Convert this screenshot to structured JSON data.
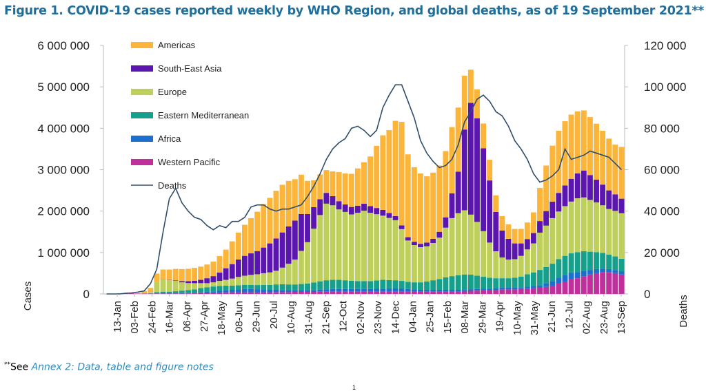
{
  "figure": {
    "title": "Figure 1. COVID-19 cases reported weekly by WHO Region, and global deaths, as of 19 September 2021**",
    "note_marker": "**",
    "note_prefix": "See ",
    "note_link": "Annex 2: Data, table and figure notes",
    "page_number": "1"
  },
  "chart_data": {
    "type": "bar",
    "stacked": true,
    "xlabels": [
      "13-Jan",
      "03-Feb",
      "24-Feb",
      "16-Mar",
      "06-Apr",
      "27-Apr",
      "18-May",
      "08-Jun",
      "29-Jun",
      "20-Jul",
      "10-Aug",
      "31-Aug",
      "21-Sep",
      "12-Oct",
      "02-Nov",
      "23-Nov",
      "14-Dec",
      "04-Jan",
      "25-Jan",
      "15-Feb",
      "08-Mar",
      "29-Mar",
      "19-Apr",
      "10-May",
      "31-May",
      "21-Jun",
      "12-Jul",
      "02-Aug",
      "23-Aug",
      "13-Sep"
    ],
    "ylabel": "Cases",
    "y2label": "Deaths",
    "ylim": [
      0,
      6000000
    ],
    "y2lim": [
      0,
      120000
    ],
    "yticks": [
      "0",
      "1 000 000",
      "2 000 000",
      "3 000 000",
      "4 000 000",
      "5 000 000",
      "6 000 000"
    ],
    "y2ticks": [
      "0",
      "20 000",
      "40 000",
      "60 000",
      "80 000",
      "100 000",
      "120 000"
    ],
    "legend_position": "top-left",
    "series": [
      {
        "name": "Western Pacific",
        "color": "#c0309a",
        "values": [
          0,
          5000,
          10000,
          15000,
          15000,
          10000,
          10000,
          10000,
          10000,
          10000,
          10000,
          10000,
          10000,
          12000,
          15000,
          20000,
          25000,
          30000,
          35000,
          40000,
          40000,
          40000,
          40000,
          40000,
          40000,
          40000,
          40000,
          45000,
          45000,
          45000,
          50000,
          50000,
          50000,
          50000,
          55000,
          55000,
          60000,
          60000,
          60000,
          60000,
          60000,
          60000,
          60000,
          60000,
          60000,
          60000,
          60000,
          60000,
          60000,
          60000,
          60000,
          60000,
          60000,
          60000,
          60000,
          60000,
          60000,
          70000,
          75000,
          80000,
          85000,
          90000,
          100000,
          110000,
          110000,
          110000,
          120000,
          130000,
          140000,
          150000,
          170000,
          200000,
          250000,
          300000,
          350000,
          380000,
          430000,
          470000,
          500000,
          520000,
          520000,
          500000,
          470000
        ]
      },
      {
        "name": "Africa",
        "color": "#1d6fcf",
        "values": [
          0,
          0,
          0,
          0,
          0,
          0,
          0,
          0,
          3000,
          5000,
          5000,
          5000,
          10000,
          10000,
          15000,
          20000,
          25000,
          30000,
          40000,
          50000,
          60000,
          70000,
          80000,
          80000,
          75000,
          70000,
          60000,
          55000,
          50000,
          45000,
          40000,
          40000,
          40000,
          45000,
          50000,
          55000,
          60000,
          60000,
          60000,
          60000,
          60000,
          60000,
          60000,
          65000,
          70000,
          75000,
          80000,
          75000,
          60000,
          50000,
          40000,
          40000,
          40000,
          40000,
          40000,
          40000,
          40000,
          40000,
          40000,
          40000,
          40000,
          40000,
          40000,
          40000,
          40000,
          40000,
          40000,
          45000,
          50000,
          60000,
          80000,
          110000,
          140000,
          160000,
          160000,
          150000,
          130000,
          110000,
          100000,
          90000,
          80000,
          75000,
          70000
        ]
      },
      {
        "name": "Eastern Mediterranean",
        "color": "#16a08c",
        "values": [
          0,
          0,
          0,
          0,
          0,
          0,
          2000,
          5000,
          30000,
          40000,
          40000,
          50000,
          60000,
          70000,
          80000,
          100000,
          110000,
          120000,
          120000,
          110000,
          100000,
          100000,
          100000,
          100000,
          100000,
          110000,
          120000,
          130000,
          140000,
          140000,
          140000,
          150000,
          160000,
          180000,
          200000,
          220000,
          220000,
          220000,
          210000,
          200000,
          190000,
          190000,
          190000,
          200000,
          210000,
          200000,
          190000,
          180000,
          170000,
          170000,
          180000,
          200000,
          230000,
          260000,
          300000,
          330000,
          350000,
          360000,
          350000,
          320000,
          290000,
          260000,
          240000,
          230000,
          230000,
          240000,
          260000,
          300000,
          330000,
          370000,
          400000,
          420000,
          450000,
          460000,
          470000,
          480000,
          470000,
          440000,
          410000,
          380000,
          350000,
          330000,
          310000
        ]
      },
      {
        "name": "Europe",
        "color": "#bed05b",
        "values": [
          0,
          0,
          0,
          0,
          0,
          0,
          20000,
          30000,
          250000,
          300000,
          280000,
          250000,
          200000,
          170000,
          150000,
          120000,
          100000,
          100000,
          120000,
          140000,
          170000,
          200000,
          220000,
          240000,
          260000,
          280000,
          300000,
          330000,
          400000,
          500000,
          600000,
          800000,
          1000000,
          1300000,
          1600000,
          1850000,
          1800000,
          1700000,
          1650000,
          1600000,
          1650000,
          1700000,
          1650000,
          1600000,
          1550000,
          1500000,
          1450000,
          1250000,
          1000000,
          900000,
          850000,
          850000,
          900000,
          1000000,
          1200000,
          1400000,
          1500000,
          1550000,
          1450000,
          1300000,
          1100000,
          850000,
          650000,
          500000,
          450000,
          450000,
          500000,
          600000,
          700000,
          900000,
          1000000,
          1100000,
          1150000,
          1200000,
          1250000,
          1300000,
          1300000,
          1250000,
          1200000,
          1150000,
          1100000,
          1100000,
          1100000
        ]
      },
      {
        "name": "South-East Asia",
        "color": "#5b16b0",
        "values": [
          0,
          0,
          0,
          0,
          0,
          0,
          0,
          0,
          0,
          5000,
          5000,
          10000,
          30000,
          45000,
          60000,
          80000,
          120000,
          150000,
          200000,
          280000,
          350000,
          420000,
          480000,
          520000,
          560000,
          620000,
          700000,
          780000,
          850000,
          900000,
          940000,
          890000,
          680000,
          520000,
          380000,
          260000,
          220000,
          200000,
          180000,
          180000,
          170000,
          170000,
          160000,
          150000,
          140000,
          120000,
          100000,
          90000,
          80000,
          80000,
          80000,
          90000,
          100000,
          140000,
          250000,
          600000,
          1000000,
          1950000,
          2700000,
          2500000,
          2000000,
          1500000,
          950000,
          650000,
          500000,
          380000,
          300000,
          250000,
          250000,
          280000,
          350000,
          400000,
          450000,
          500000,
          550000,
          600000,
          650000,
          600000,
          550000,
          500000,
          450000,
          400000,
          350000
        ]
      },
      {
        "name": "Americas",
        "color": "#fbb53a",
        "values": [
          0,
          0,
          0,
          0,
          0,
          0,
          40000,
          100000,
          200000,
          230000,
          250000,
          280000,
          290000,
          300000,
          310000,
          320000,
          330000,
          350000,
          400000,
          450000,
          550000,
          650000,
          750000,
          850000,
          950000,
          1050000,
          1100000,
          1150000,
          1150000,
          1100000,
          1000000,
          950000,
          800000,
          650000,
          600000,
          550000,
          600000,
          700000,
          750000,
          800000,
          900000,
          1000000,
          1200000,
          1500000,
          1800000,
          2000000,
          2300000,
          2500000,
          2000000,
          1800000,
          1700000,
          1600000,
          1600000,
          1600000,
          1600000,
          1600000,
          1550000,
          1300000,
          800000,
          700000,
          600000,
          500000,
          400000,
          350000,
          350000,
          350000,
          350000,
          400000,
          500000,
          800000,
          1100000,
          1350000,
          1500000,
          1550000,
          1550000,
          1500000,
          1450000,
          1400000,
          1350000,
          1300000,
          1250000,
          1200000,
          1250000
        ]
      }
    ],
    "deaths": {
      "name": "Deaths",
      "color": "#2f4d6c",
      "values": [
        0,
        0,
        0,
        300,
        500,
        900,
        1500,
        5000,
        12000,
        30000,
        46000,
        51000,
        44000,
        40000,
        37000,
        36000,
        33000,
        31000,
        33000,
        32000,
        35000,
        35000,
        37000,
        42000,
        43000,
        43000,
        41000,
        40000,
        41000,
        41000,
        42000,
        43000,
        47000,
        52000,
        58000,
        65000,
        70000,
        73000,
        75000,
        80000,
        81000,
        79000,
        76000,
        79000,
        90000,
        96000,
        101000,
        101000,
        93000,
        85000,
        74000,
        68000,
        64000,
        61000,
        62000,
        65000,
        72000,
        83000,
        88000,
        94000,
        96000,
        93000,
        88000,
        86000,
        81000,
        74000,
        70000,
        65000,
        58000,
        54000,
        55000,
        57000,
        60000,
        70000,
        65000,
        66000,
        67000,
        69000,
        68000,
        67000,
        66000,
        63000,
        60000
      ]
    }
  }
}
